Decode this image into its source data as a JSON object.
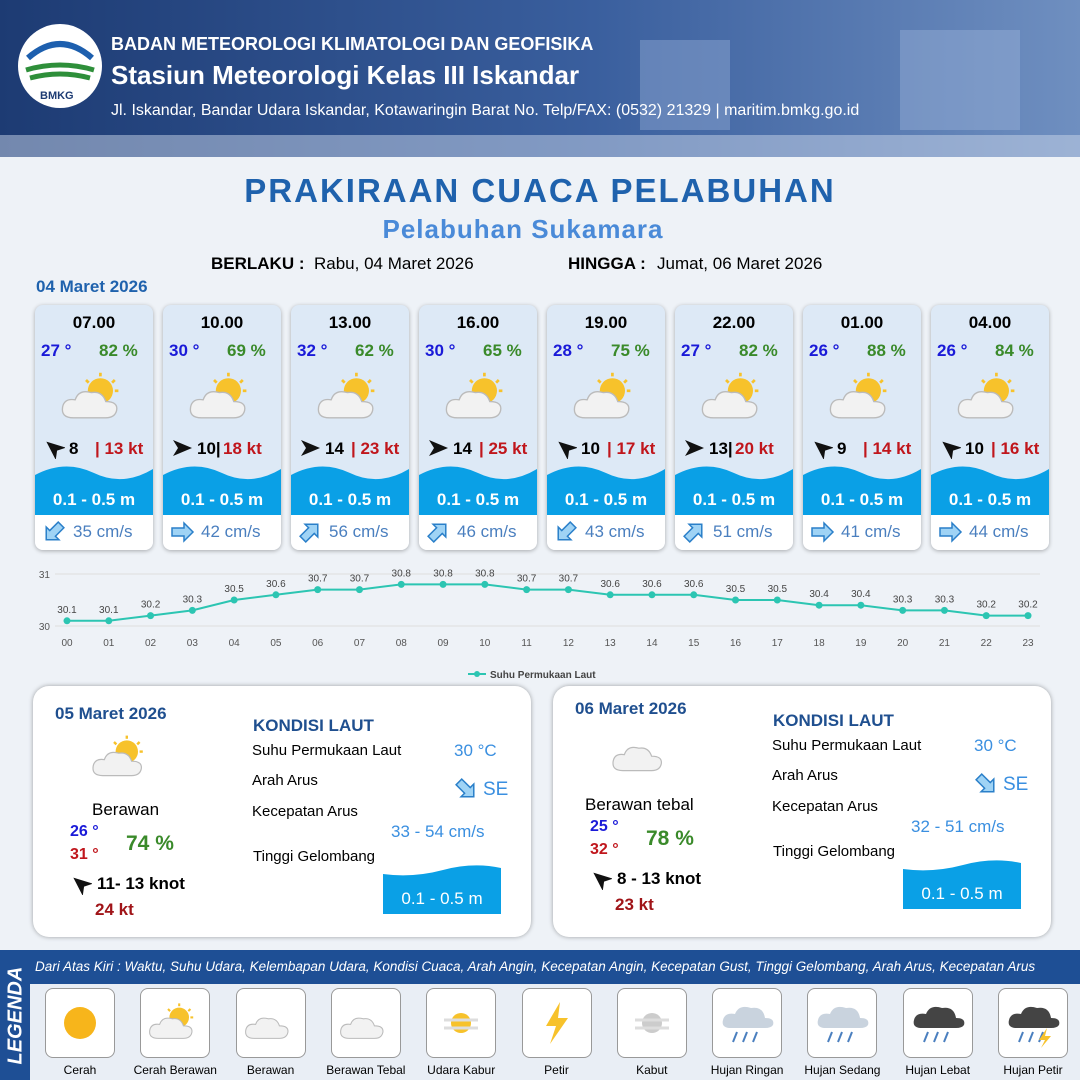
{
  "header": {
    "logo": "BMKG",
    "org": "BADAN METEOROLOGI KLIMATOLOGI DAN GEOFISIKA",
    "station": "Stasiun Meteorologi Kelas III Iskandar",
    "address": "Jl. Iskandar, Bandar Udara Iskandar, Kotawaringin Barat No. Telp/FAX: (0532) 21329 | maritim.bmkg.go.id"
  },
  "title": "PRAKIRAAN CUACA PELABUHAN",
  "subtitle": "Pelabuhan Sukamara",
  "validity": {
    "from_label": "BERLAKU :",
    "from": "Rabu, 04 Maret 2026",
    "to_label": "HINGGA :",
    "to": "Jumat, 06 Maret 2026"
  },
  "day1": {
    "date": "04 Maret 2026",
    "cards": [
      {
        "time": "07.00",
        "temp": "27 °",
        "humidity": "82 %",
        "wind": "8",
        "gust": "| 13 kt",
        "wave": "0.1 - 0.5 m",
        "current": "35 cm/s"
      },
      {
        "time": "10.00",
        "temp": "30 °",
        "humidity": "69 %",
        "wind": "10|",
        "gust": "18 kt",
        "wave": "0.1 - 0.5 m",
        "current": "42 cm/s"
      },
      {
        "time": "13.00",
        "temp": "32 °",
        "humidity": "62 %",
        "wind": "14",
        "gust": "| 23 kt",
        "wave": "0.1 - 0.5 m",
        "current": "56 cm/s"
      },
      {
        "time": "16.00",
        "temp": "30 °",
        "humidity": "65 %",
        "wind": "14",
        "gust": "| 25 kt",
        "wave": "0.1 - 0.5 m",
        "current": "46 cm/s"
      },
      {
        "time": "19.00",
        "temp": "28 °",
        "humidity": "75 %",
        "wind": "10",
        "gust": "| 17 kt",
        "wave": "0.1 - 0.5 m",
        "current": "43 cm/s"
      },
      {
        "time": "22.00",
        "temp": "27 °",
        "humidity": "82 %",
        "wind": "13|",
        "gust": "20 kt",
        "wave": "0.1 - 0.5 m",
        "current": "51 cm/s"
      },
      {
        "time": "01.00",
        "temp": "26 °",
        "humidity": "88 %",
        "wind": "9",
        "gust": "| 14 kt",
        "wave": "0.1 - 0.5 m",
        "current": "41 cm/s"
      },
      {
        "time": "04.00",
        "temp": "26 °",
        "humidity": "84 %",
        "wind": "10",
        "gust": "| 16 kt",
        "wave": "0.1 - 0.5 m",
        "current": "44 cm/s"
      }
    ]
  },
  "chart_data": {
    "type": "line",
    "categories": [
      "00",
      "01",
      "02",
      "03",
      "04",
      "05",
      "06",
      "07",
      "08",
      "09",
      "10",
      "11",
      "12",
      "13",
      "14",
      "15",
      "16",
      "17",
      "18",
      "19",
      "20",
      "21",
      "22",
      "23"
    ],
    "series": [
      {
        "name": "Suhu Permukaan Laut",
        "color": "#2cc5b2",
        "values": [
          30.1,
          30.1,
          30.2,
          30.3,
          30.5,
          30.6,
          30.7,
          30.7,
          30.8,
          30.8,
          30.8,
          30.7,
          30.7,
          30.6,
          30.6,
          30.6,
          30.5,
          30.5,
          30.4,
          30.4,
          30.3,
          30.3,
          30.2,
          30.2
        ]
      }
    ],
    "ylim": [
      30,
      31
    ],
    "yticks": [
      30,
      31
    ],
    "grid": true
  },
  "days": [
    {
      "date": "05 Maret 2026",
      "weather": "Berawan",
      "tmin": "26 °",
      "tmax": "31 °",
      "humidity": "74 %",
      "wind": "11- 13 knot",
      "gust": "24 kt",
      "sea_title": "KONDISI LAUT",
      "sst_label": "Suhu Permukaan Laut",
      "sst": "30 °C",
      "dir_label": "Arah Arus",
      "dir": "SE",
      "speed_label": "Kecepatan Arus",
      "speed": "33  - 54 cm/s",
      "wave_label": "Tinggi Gelombang",
      "wave": "0.1 - 0.5 m"
    },
    {
      "date": "06 Maret 2026",
      "weather": "Berawan tebal",
      "tmin": "25 °",
      "tmax": "32 °",
      "humidity": "78 %",
      "wind": "8  - 13 knot",
      "gust": "23 kt",
      "sea_title": "KONDISI LAUT",
      "sst_label": "Suhu Permukaan Laut",
      "sst": "30 °C",
      "dir_label": "Arah Arus",
      "dir": "SE",
      "speed_label": "Kecepatan Arus",
      "speed": "32 - 51 cm/s",
      "wave_label": "Tinggi Gelombang",
      "wave": "0.1 - 0.5 m"
    }
  ],
  "legend": {
    "title": "LEGENDA",
    "description": "Dari Atas Kiri : Waktu, Suhu Udara, Kelembapan Udara, Kondisi Cuaca, Arah Angin, Kecepatan Angin, Kecepatan Gust, Tinggi Gelombang, Arah Arus, Kecepatan Arus",
    "items": [
      "Cerah",
      "Cerah Berawan",
      "Berawan",
      "Berawan Tebal",
      "Udara Kabur",
      "Petir",
      "Kabut",
      "Hujan Ringan",
      "Hujan Sedang",
      "Hujan Lebat",
      "Hujan Petir"
    ]
  }
}
